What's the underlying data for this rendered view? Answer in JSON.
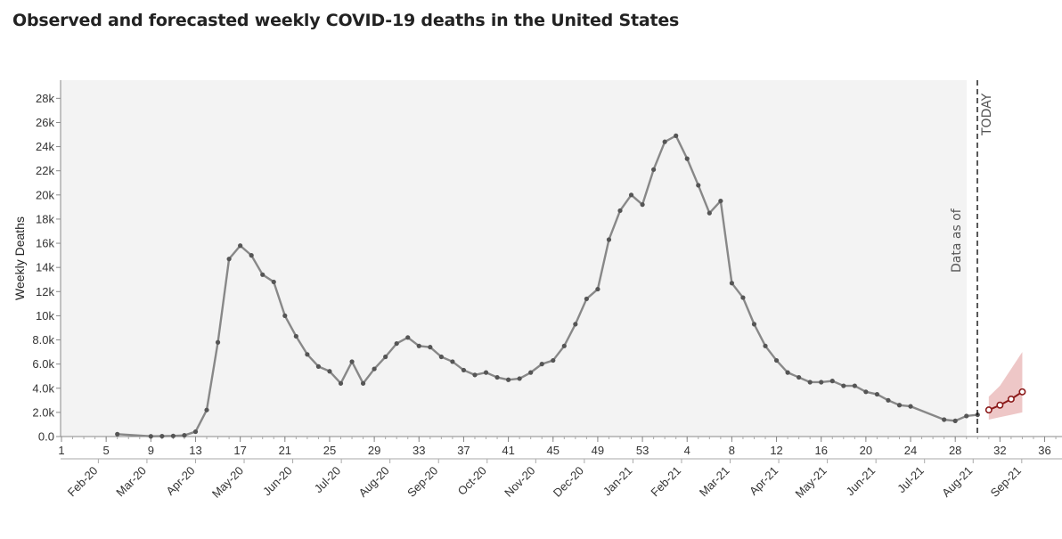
{
  "chart_data": {
    "type": "line",
    "title": "Observed and forecasted weekly COVID-19 deaths in the United States",
    "ylabel": "Weekly Deaths",
    "xlabel": "",
    "ylim": [
      0,
      29500
    ],
    "yticks": [
      0,
      2000,
      4000,
      6000,
      8000,
      10000,
      12000,
      14000,
      16000,
      18000,
      20000,
      22000,
      24000,
      26000,
      28000
    ],
    "ytick_labels": [
      "0.0",
      "2.0k",
      "4.0k",
      "6.0k",
      "8.0k",
      "10k",
      "12k",
      "14k",
      "16k",
      "18k",
      "20k",
      "22k",
      "24k",
      "26k",
      "28k"
    ],
    "x_week_ticks": [
      "1",
      "5",
      "9",
      "13",
      "17",
      "21",
      "25",
      "29",
      "33",
      "37",
      "41",
      "45",
      "49",
      "53",
      "4",
      "8",
      "12",
      "16",
      "20",
      "24",
      "28",
      "32",
      "36"
    ],
    "x_month_ticks": [
      "Feb-20",
      "Mar-20",
      "Apr-20",
      "May-20",
      "Jun-20",
      "Jul-20",
      "Aug-20",
      "Sep-20",
      "Oct-20",
      "Nov-20",
      "Dec-20",
      "Jan-21",
      "Feb-21",
      "Mar-21",
      "Apr-21",
      "May-21",
      "Jun-21",
      "Jul-21",
      "Aug-21",
      "Sep-21"
    ],
    "grid": false,
    "observed": {
      "color": "#888888",
      "points": [
        [
          6,
          200
        ],
        [
          9,
          20
        ],
        [
          10,
          30
        ],
        [
          11,
          50
        ],
        [
          12,
          100
        ],
        [
          13,
          400
        ],
        [
          14,
          2200
        ],
        [
          15,
          7800
        ],
        [
          16,
          14700
        ],
        [
          17,
          15800
        ],
        [
          18,
          15000
        ],
        [
          19,
          13400
        ],
        [
          20,
          12800
        ],
        [
          21,
          10000
        ],
        [
          22,
          8300
        ],
        [
          23,
          6800
        ],
        [
          24,
          5800
        ],
        [
          25,
          5400
        ],
        [
          26,
          4400
        ],
        [
          27,
          6200
        ],
        [
          28,
          4400
        ],
        [
          29,
          5600
        ],
        [
          30,
          6600
        ],
        [
          31,
          7700
        ],
        [
          32,
          8200
        ],
        [
          33,
          7500
        ],
        [
          34,
          7400
        ],
        [
          35,
          6600
        ],
        [
          36,
          6200
        ],
        [
          37,
          5500
        ],
        [
          38,
          5100
        ],
        [
          39,
          5300
        ],
        [
          40,
          4900
        ],
        [
          41,
          4700
        ],
        [
          42,
          4800
        ],
        [
          43,
          5300
        ],
        [
          44,
          6000
        ],
        [
          45,
          6300
        ],
        [
          46,
          7500
        ],
        [
          47,
          9300
        ],
        [
          48,
          11400
        ],
        [
          49,
          12200
        ],
        [
          50,
          16300
        ],
        [
          51,
          18700
        ],
        [
          52,
          20000
        ],
        [
          53,
          19200
        ],
        [
          54,
          22100
        ],
        [
          55,
          24400
        ],
        [
          56,
          24900
        ],
        [
          57,
          23000
        ],
        [
          58,
          20800
        ],
        [
          59,
          18500
        ],
        [
          60,
          19500
        ],
        [
          61,
          12700
        ],
        [
          62,
          11500
        ],
        [
          63,
          9300
        ],
        [
          64,
          7500
        ],
        [
          65,
          6300
        ],
        [
          66,
          5300
        ],
        [
          67,
          4900
        ],
        [
          68,
          4500
        ],
        [
          69,
          4500
        ],
        [
          70,
          4600
        ],
        [
          71,
          4200
        ],
        [
          72,
          4200
        ],
        [
          73,
          3700
        ],
        [
          74,
          3500
        ],
        [
          75,
          3000
        ],
        [
          76,
          2600
        ],
        [
          77,
          2500
        ],
        [
          80,
          1400
        ],
        [
          81,
          1300
        ],
        [
          82,
          1700
        ],
        [
          83,
          1800
        ]
      ]
    },
    "forecast": {
      "color": "#8b1a1a",
      "band_color": "#e8b4b4",
      "points": [
        [
          84,
          2200
        ],
        [
          85,
          2600
        ],
        [
          86,
          3100
        ],
        [
          87,
          3700
        ]
      ],
      "lower": [
        [
          84,
          1400
        ],
        [
          85,
          1600
        ],
        [
          86,
          1800
        ],
        [
          87,
          2000
        ]
      ],
      "upper": [
        [
          84,
          3300
        ],
        [
          85,
          4200
        ],
        [
          86,
          5600
        ],
        [
          87,
          7000
        ]
      ]
    },
    "today_marker": {
      "label": "TODAY",
      "data_as_of": "Data as of"
    }
  }
}
